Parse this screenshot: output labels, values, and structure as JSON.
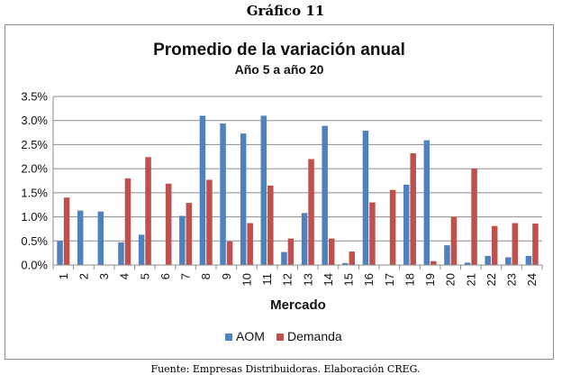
{
  "heading": "Gráfico 11",
  "source": "Fuente: Empresas Distribuidoras. Elaboración CREG.",
  "chart_data": {
    "type": "bar",
    "title": "Promedio de la variación anual",
    "subtitle": "Año 5 a año 20",
    "xlabel": "Mercado",
    "ylabel": "",
    "ylim": [
      0,
      3.5
    ],
    "yticks": [
      "0.0%",
      "0.5%",
      "1.0%",
      "1.5%",
      "2.0%",
      "2.5%",
      "3.0%",
      "3.5%"
    ],
    "grid": true,
    "legend_position": "bottom",
    "categories": [
      "1",
      "2",
      "3",
      "4",
      "5",
      "6",
      "7",
      "8",
      "9",
      "10",
      "11",
      "12",
      "13",
      "14",
      "15",
      "16",
      "17",
      "18",
      "19",
      "20",
      "21",
      "22",
      "23",
      "24"
    ],
    "series": [
      {
        "name": "AOM",
        "color": "#4f81bd",
        "values": [
          0.5,
          1.13,
          1.11,
          0.47,
          0.63,
          0,
          1.02,
          3.1,
          2.94,
          2.73,
          3.1,
          0.27,
          1.08,
          2.89,
          0.04,
          2.79,
          0,
          1.67,
          2.59,
          0.41,
          0.05,
          0.19,
          0.16,
          0.19
        ]
      },
      {
        "name": "Demanda",
        "color": "#c0504d",
        "values": [
          1.4,
          0,
          0,
          1.8,
          2.24,
          1.69,
          1.29,
          1.77,
          0.49,
          0.87,
          1.65,
          0.55,
          2.2,
          0.55,
          0.28,
          1.3,
          1.56,
          2.32,
          0.08,
          1.0,
          2.0,
          0.81,
          0.87,
          0.86
        ]
      }
    ]
  }
}
